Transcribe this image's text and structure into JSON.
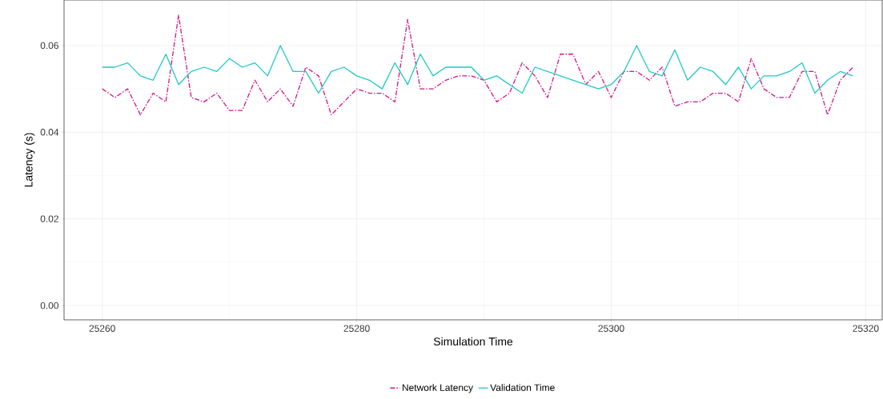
{
  "chart_data": {
    "type": "line",
    "xlabel": "Simulation Time",
    "ylabel": "Latency (s)",
    "x": [
      25260,
      25261,
      25262,
      25263,
      25264,
      25265,
      25266,
      25267,
      25268,
      25269,
      25270,
      25271,
      25272,
      25273,
      25274,
      25275,
      25276,
      25277,
      25278,
      25279,
      25280,
      25281,
      25282,
      25283,
      25284,
      25285,
      25286,
      25287,
      25288,
      25289,
      25290,
      25291,
      25292,
      25293,
      25294,
      25295,
      25296,
      25297,
      25298,
      25299,
      25300,
      25301,
      25302,
      25303,
      25304,
      25305,
      25306,
      25307,
      25308,
      25309,
      25310,
      25311,
      25312,
      25313,
      25314,
      25315,
      25316,
      25317,
      25318,
      25319
    ],
    "series": [
      {
        "name": "Network Latency",
        "color": "#d4148a",
        "line_style": "dashed",
        "values": [
          0.05,
          0.048,
          0.05,
          0.044,
          0.049,
          0.047,
          0.067,
          0.048,
          0.047,
          0.049,
          0.045,
          0.045,
          0.052,
          0.047,
          0.05,
          0.046,
          0.055,
          0.053,
          0.044,
          0.047,
          0.05,
          0.049,
          0.049,
          0.047,
          0.066,
          0.05,
          0.05,
          0.052,
          0.053,
          0.053,
          0.052,
          0.047,
          0.049,
          0.056,
          0.053,
          0.048,
          0.058,
          0.058,
          0.051,
          0.054,
          0.048,
          0.054,
          0.054,
          0.052,
          0.055,
          0.046,
          0.047,
          0.047,
          0.049,
          0.049,
          0.047,
          0.057,
          0.05,
          0.048,
          0.048,
          0.054,
          0.054,
          0.044,
          0.052,
          0.055
        ]
      },
      {
        "name": "Validation Time",
        "color": "#1fc8c8",
        "line_style": "solid",
        "values": [
          0.055,
          0.055,
          0.056,
          0.053,
          0.052,
          0.058,
          0.051,
          0.054,
          0.055,
          0.054,
          0.057,
          0.055,
          0.056,
          0.053,
          0.06,
          0.054,
          0.054,
          0.049,
          0.054,
          0.055,
          0.053,
          0.052,
          0.05,
          0.056,
          0.051,
          0.058,
          0.053,
          0.055,
          0.055,
          0.055,
          0.052,
          0.053,
          0.051,
          0.049,
          0.055,
          0.054,
          0.053,
          0.052,
          0.051,
          0.05,
          0.051,
          0.054,
          0.06,
          0.054,
          0.053,
          0.059,
          0.052,
          0.055,
          0.054,
          0.051,
          0.055,
          0.05,
          0.053,
          0.053,
          0.054,
          0.056,
          0.049,
          0.052,
          0.054,
          0.053
        ]
      }
    ],
    "xlim": [
      25257,
      25321.3
    ],
    "ylim": [
      -0.0033,
      0.0705
    ],
    "xticks": [
      25260,
      25280,
      25300,
      25320
    ],
    "yticks": [
      {
        "value": 0,
        "label": "0.00"
      },
      {
        "value": 0.02,
        "label": "0.02"
      },
      {
        "value": 0.04,
        "label": "0.04"
      },
      {
        "value": 0.06,
        "label": "0.06"
      }
    ],
    "grid": true,
    "legend": "bottom",
    "marker": "none"
  }
}
